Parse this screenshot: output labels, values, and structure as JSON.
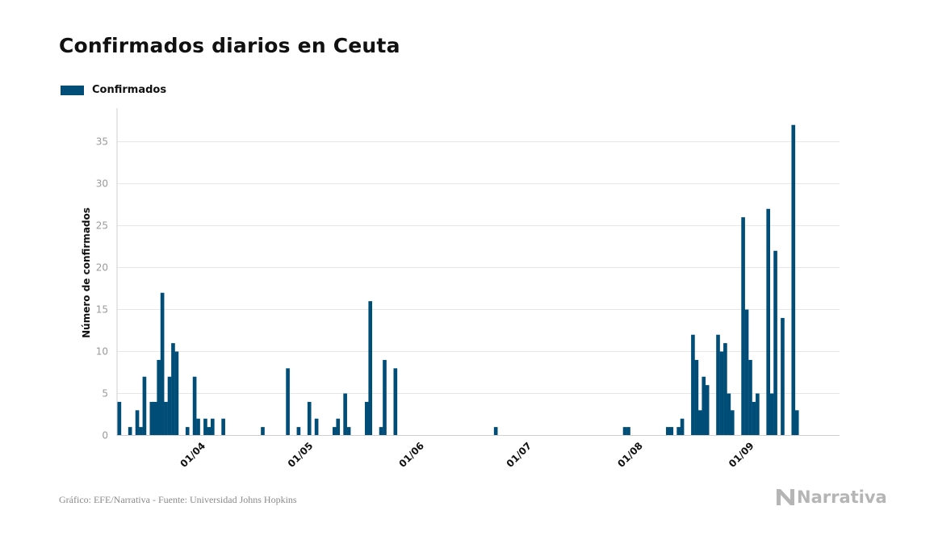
{
  "title": "Confirmados diarios en Ceuta",
  "legend": {
    "label": "Confirmados",
    "color": "#004e78"
  },
  "footer": "Gráfico: EFE/Narrativa - Fuente: Universidad Johns Hopkins",
  "logo": {
    "text": "Narrativa",
    "icon": "narrativa-logo-icon"
  },
  "chart_data": {
    "type": "bar",
    "ylabel": "Número de confirmados",
    "xlabel": "",
    "ylim": [
      0,
      39
    ],
    "yticks": [
      0,
      5,
      10,
      15,
      20,
      25,
      30,
      35
    ],
    "grid": true,
    "legend_position": "top-left",
    "x_start": "2020-03-01",
    "x_end": "2020-09-30",
    "xtick_labels": [
      {
        "date": "2020-04-01",
        "label": "01/04"
      },
      {
        "date": "2020-05-01",
        "label": "01/05"
      },
      {
        "date": "2020-06-01",
        "label": "01/06"
      },
      {
        "date": "2020-07-01",
        "label": "01/07"
      },
      {
        "date": "2020-08-01",
        "label": "01/08"
      },
      {
        "date": "2020-09-01",
        "label": "01/09"
      }
    ],
    "series": [
      {
        "name": "Confirmados",
        "color": "#004e78",
        "points": [
          [
            "2020-03-11",
            4
          ],
          [
            "2020-03-14",
            1
          ],
          [
            "2020-03-16",
            3
          ],
          [
            "2020-03-17",
            1
          ],
          [
            "2020-03-18",
            7
          ],
          [
            "2020-03-20",
            4
          ],
          [
            "2020-03-21",
            4
          ],
          [
            "2020-03-22",
            9
          ],
          [
            "2020-03-23",
            17
          ],
          [
            "2020-03-24",
            4
          ],
          [
            "2020-03-25",
            7
          ],
          [
            "2020-03-26",
            11
          ],
          [
            "2020-03-27",
            10
          ],
          [
            "2020-03-30",
            1
          ],
          [
            "2020-04-01",
            7
          ],
          [
            "2020-04-02",
            2
          ],
          [
            "2020-04-04",
            2
          ],
          [
            "2020-04-05",
            1
          ],
          [
            "2020-04-06",
            2
          ],
          [
            "2020-04-09",
            2
          ],
          [
            "2020-04-20",
            1
          ],
          [
            "2020-04-27",
            8
          ],
          [
            "2020-04-30",
            1
          ],
          [
            "2020-05-03",
            4
          ],
          [
            "2020-05-05",
            2
          ],
          [
            "2020-05-10",
            1
          ],
          [
            "2020-05-11",
            2
          ],
          [
            "2020-05-13",
            5
          ],
          [
            "2020-05-14",
            1
          ],
          [
            "2020-05-19",
            4
          ],
          [
            "2020-05-20",
            16
          ],
          [
            "2020-05-23",
            1
          ],
          [
            "2020-05-24",
            9
          ],
          [
            "2020-05-27",
            8
          ],
          [
            "2020-06-24",
            1
          ],
          [
            "2020-07-30",
            1
          ],
          [
            "2020-07-31",
            1
          ],
          [
            "2020-08-11",
            1
          ],
          [
            "2020-08-12",
            1
          ],
          [
            "2020-08-14",
            1
          ],
          [
            "2020-08-15",
            2
          ],
          [
            "2020-08-18",
            12
          ],
          [
            "2020-08-19",
            9
          ],
          [
            "2020-08-20",
            3
          ],
          [
            "2020-08-21",
            7
          ],
          [
            "2020-08-22",
            6
          ],
          [
            "2020-08-25",
            12
          ],
          [
            "2020-08-26",
            10
          ],
          [
            "2020-08-27",
            11
          ],
          [
            "2020-08-28",
            5
          ],
          [
            "2020-08-29",
            3
          ],
          [
            "2020-09-01",
            26
          ],
          [
            "2020-09-02",
            15
          ],
          [
            "2020-09-03",
            9
          ],
          [
            "2020-09-04",
            4
          ],
          [
            "2020-09-05",
            5
          ],
          [
            "2020-09-08",
            27
          ],
          [
            "2020-09-09",
            5
          ],
          [
            "2020-09-10",
            22
          ],
          [
            "2020-09-12",
            14
          ],
          [
            "2020-09-15",
            37
          ],
          [
            "2020-09-16",
            3
          ]
        ]
      }
    ]
  }
}
